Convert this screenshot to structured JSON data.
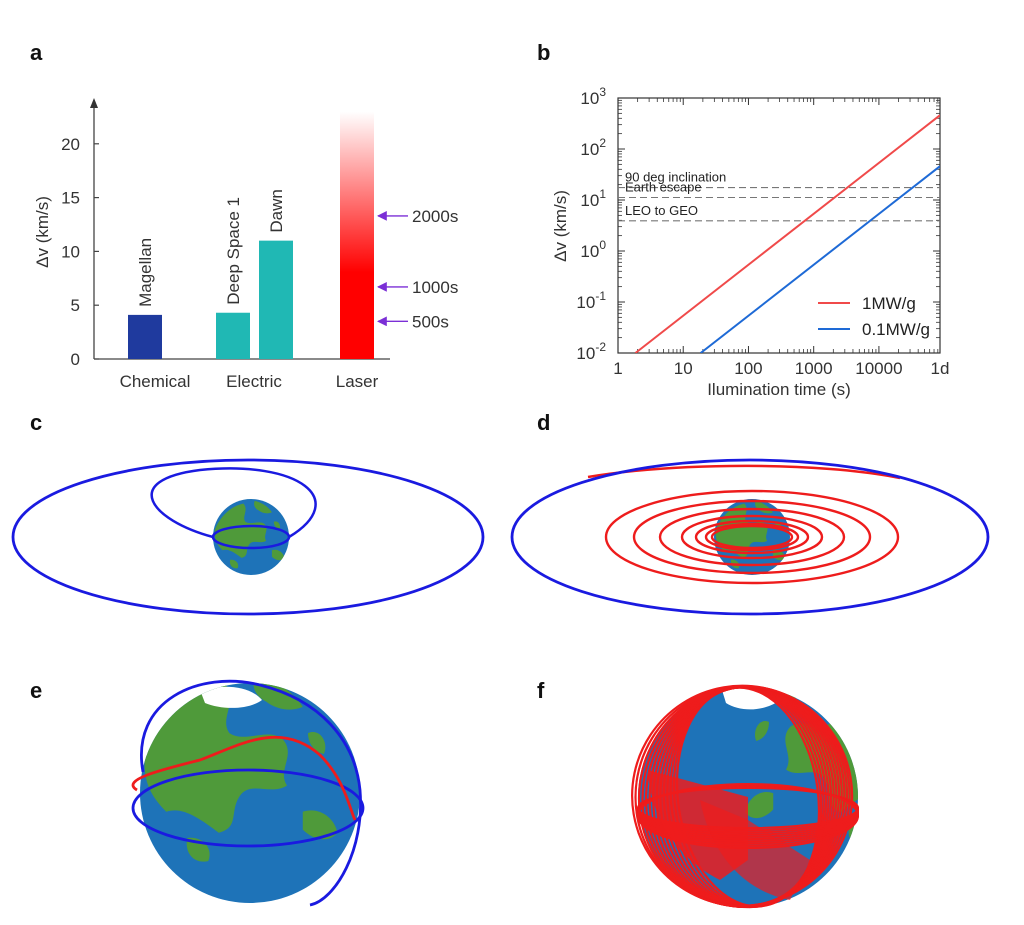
{
  "panels": {
    "a": "a",
    "b": "b",
    "c": "c",
    "d": "d",
    "e": "e",
    "f": "f"
  },
  "chart_data": [
    {
      "type": "bar",
      "panel": "a",
      "ylabel": "Δv (km/s)",
      "ylim": [
        0,
        23
      ],
      "yticks": [
        0,
        5,
        10,
        15,
        20
      ],
      "categories": [
        "Chemical",
        "Electric",
        "Laser"
      ],
      "bars": [
        {
          "label": "Magellan",
          "group": "Chemical",
          "value": 4.1,
          "color": "#1f3a9e"
        },
        {
          "label": "Deep Space 1",
          "group": "Electric",
          "value": 4.3,
          "color": "#20b8b4"
        },
        {
          "label": "Dawn",
          "group": "Electric",
          "value": 11.0,
          "color": "#20b8b4"
        },
        {
          "label": "",
          "group": "Laser",
          "value": 23,
          "color": "#ff0000",
          "gradient": true
        }
      ],
      "annotations": [
        {
          "label": "2000s",
          "value": 13.3
        },
        {
          "label": "1000s",
          "value": 6.7
        },
        {
          "label": "500s",
          "value": 3.5
        }
      ],
      "arrow_color": "#7b2fd6"
    },
    {
      "type": "line",
      "panel": "b",
      "xlabel": "Ilumination time (s)",
      "ylabel": "Δv (km/s)",
      "xscale": "log",
      "yscale": "log",
      "xlim": [
        1,
        86400
      ],
      "ylim": [
        0.01,
        1000
      ],
      "xticks": [
        {
          "v": 1,
          "label": "1"
        },
        {
          "v": 10,
          "label": "10"
        },
        {
          "v": 100,
          "label": "100"
        },
        {
          "v": 1000,
          "label": "1000"
        },
        {
          "v": 10000,
          "label": "10000"
        },
        {
          "v": 86400,
          "label": "1d"
        }
      ],
      "yticks": [
        {
          "v": 0.01,
          "base": "10",
          "exp": "-2"
        },
        {
          "v": 0.1,
          "base": "10",
          "exp": "-1"
        },
        {
          "v": 1,
          "base": "10",
          "exp": "0"
        },
        {
          "v": 10,
          "base": "10",
          "exp": "1"
        },
        {
          "v": 100,
          "base": "10",
          "exp": "2"
        },
        {
          "v": 1000,
          "base": "10",
          "exp": "3"
        }
      ],
      "series": [
        {
          "name": "1MW/g",
          "color": "#f04a4a",
          "x": [
            1.85,
            86400
          ],
          "y": [
            0.01,
            460
          ]
        },
        {
          "name": "0.1MW/g",
          "color": "#1e6ad6",
          "x": [
            18.5,
            86400
          ],
          "y": [
            0.01,
            46
          ]
        }
      ],
      "reference_lines": [
        {
          "label": "90 deg inclination",
          "y": 17.5
        },
        {
          "label": "Earth escape",
          "y": 11.2
        },
        {
          "label": "LEO to GEO",
          "y": 3.9
        }
      ],
      "legend": "bottom-right"
    }
  ]
}
